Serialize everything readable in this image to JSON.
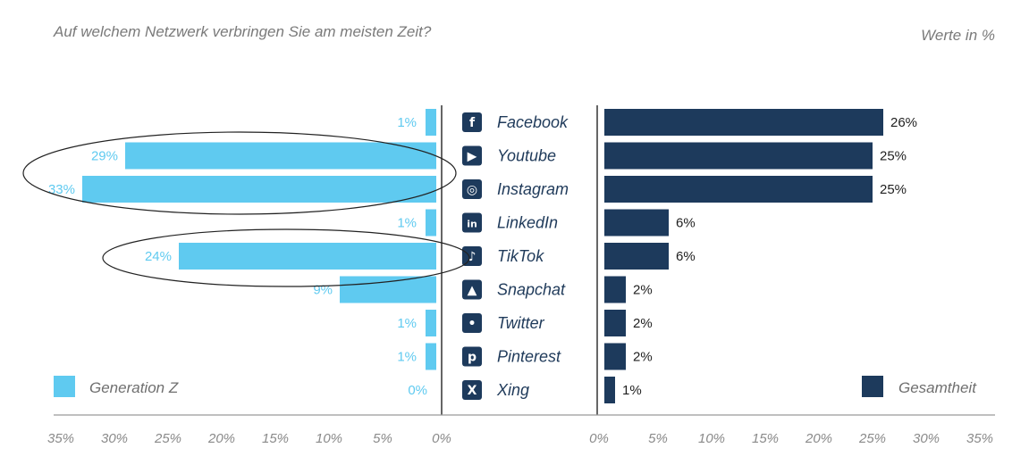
{
  "chart_data": {
    "type": "bar",
    "title": "Auf welchem Netzwerk verbringen Sie am meisten Zeit?",
    "unit_note": "Werte in %",
    "categories": [
      "Facebook",
      "Youtube",
      "Instagram",
      "LinkedIn",
      "TikTok",
      "Snapchat",
      "Twitter",
      "Pinterest",
      "Xing"
    ],
    "icons": [
      "facebook-icon",
      "youtube-icon",
      "instagram-icon",
      "linkedin-icon",
      "tiktok-icon",
      "snapchat-icon",
      "twitter-icon",
      "pinterest-icon",
      "xing-icon"
    ],
    "series": [
      {
        "name": "Generation Z",
        "color": "#5fcaf0",
        "values": [
          1,
          29,
          33,
          1,
          24,
          9,
          1,
          1,
          0
        ]
      },
      {
        "name": "Gesamtheit",
        "color": "#1d3a5c",
        "values": [
          26,
          25,
          25,
          6,
          6,
          2,
          2,
          2,
          1
        ]
      }
    ],
    "value_labels_left": [
      "1%",
      "29%",
      "33%",
      "1%",
      "24%",
      "9%",
      "1%",
      "1%",
      "0%"
    ],
    "value_labels_right": [
      "26%",
      "25%",
      "25%",
      "6%",
      "6%",
      "2%",
      "2%",
      "2%",
      "1%"
    ],
    "xlim": [
      0,
      35
    ],
    "left_ticks": [
      "35%",
      "30%",
      "25%",
      "20%",
      "15%",
      "10%",
      "5%",
      "0%"
    ],
    "right_ticks": [
      "0%",
      "5%",
      "10%",
      "15%",
      "20%",
      "25%",
      "30%",
      "35%"
    ],
    "legend": [
      "Generation Z",
      "Gesamtheit"
    ],
    "highlight_ellipses": [
      "Youtube & Instagram (Generation Z)",
      "TikTok (Generation Z)"
    ]
  }
}
